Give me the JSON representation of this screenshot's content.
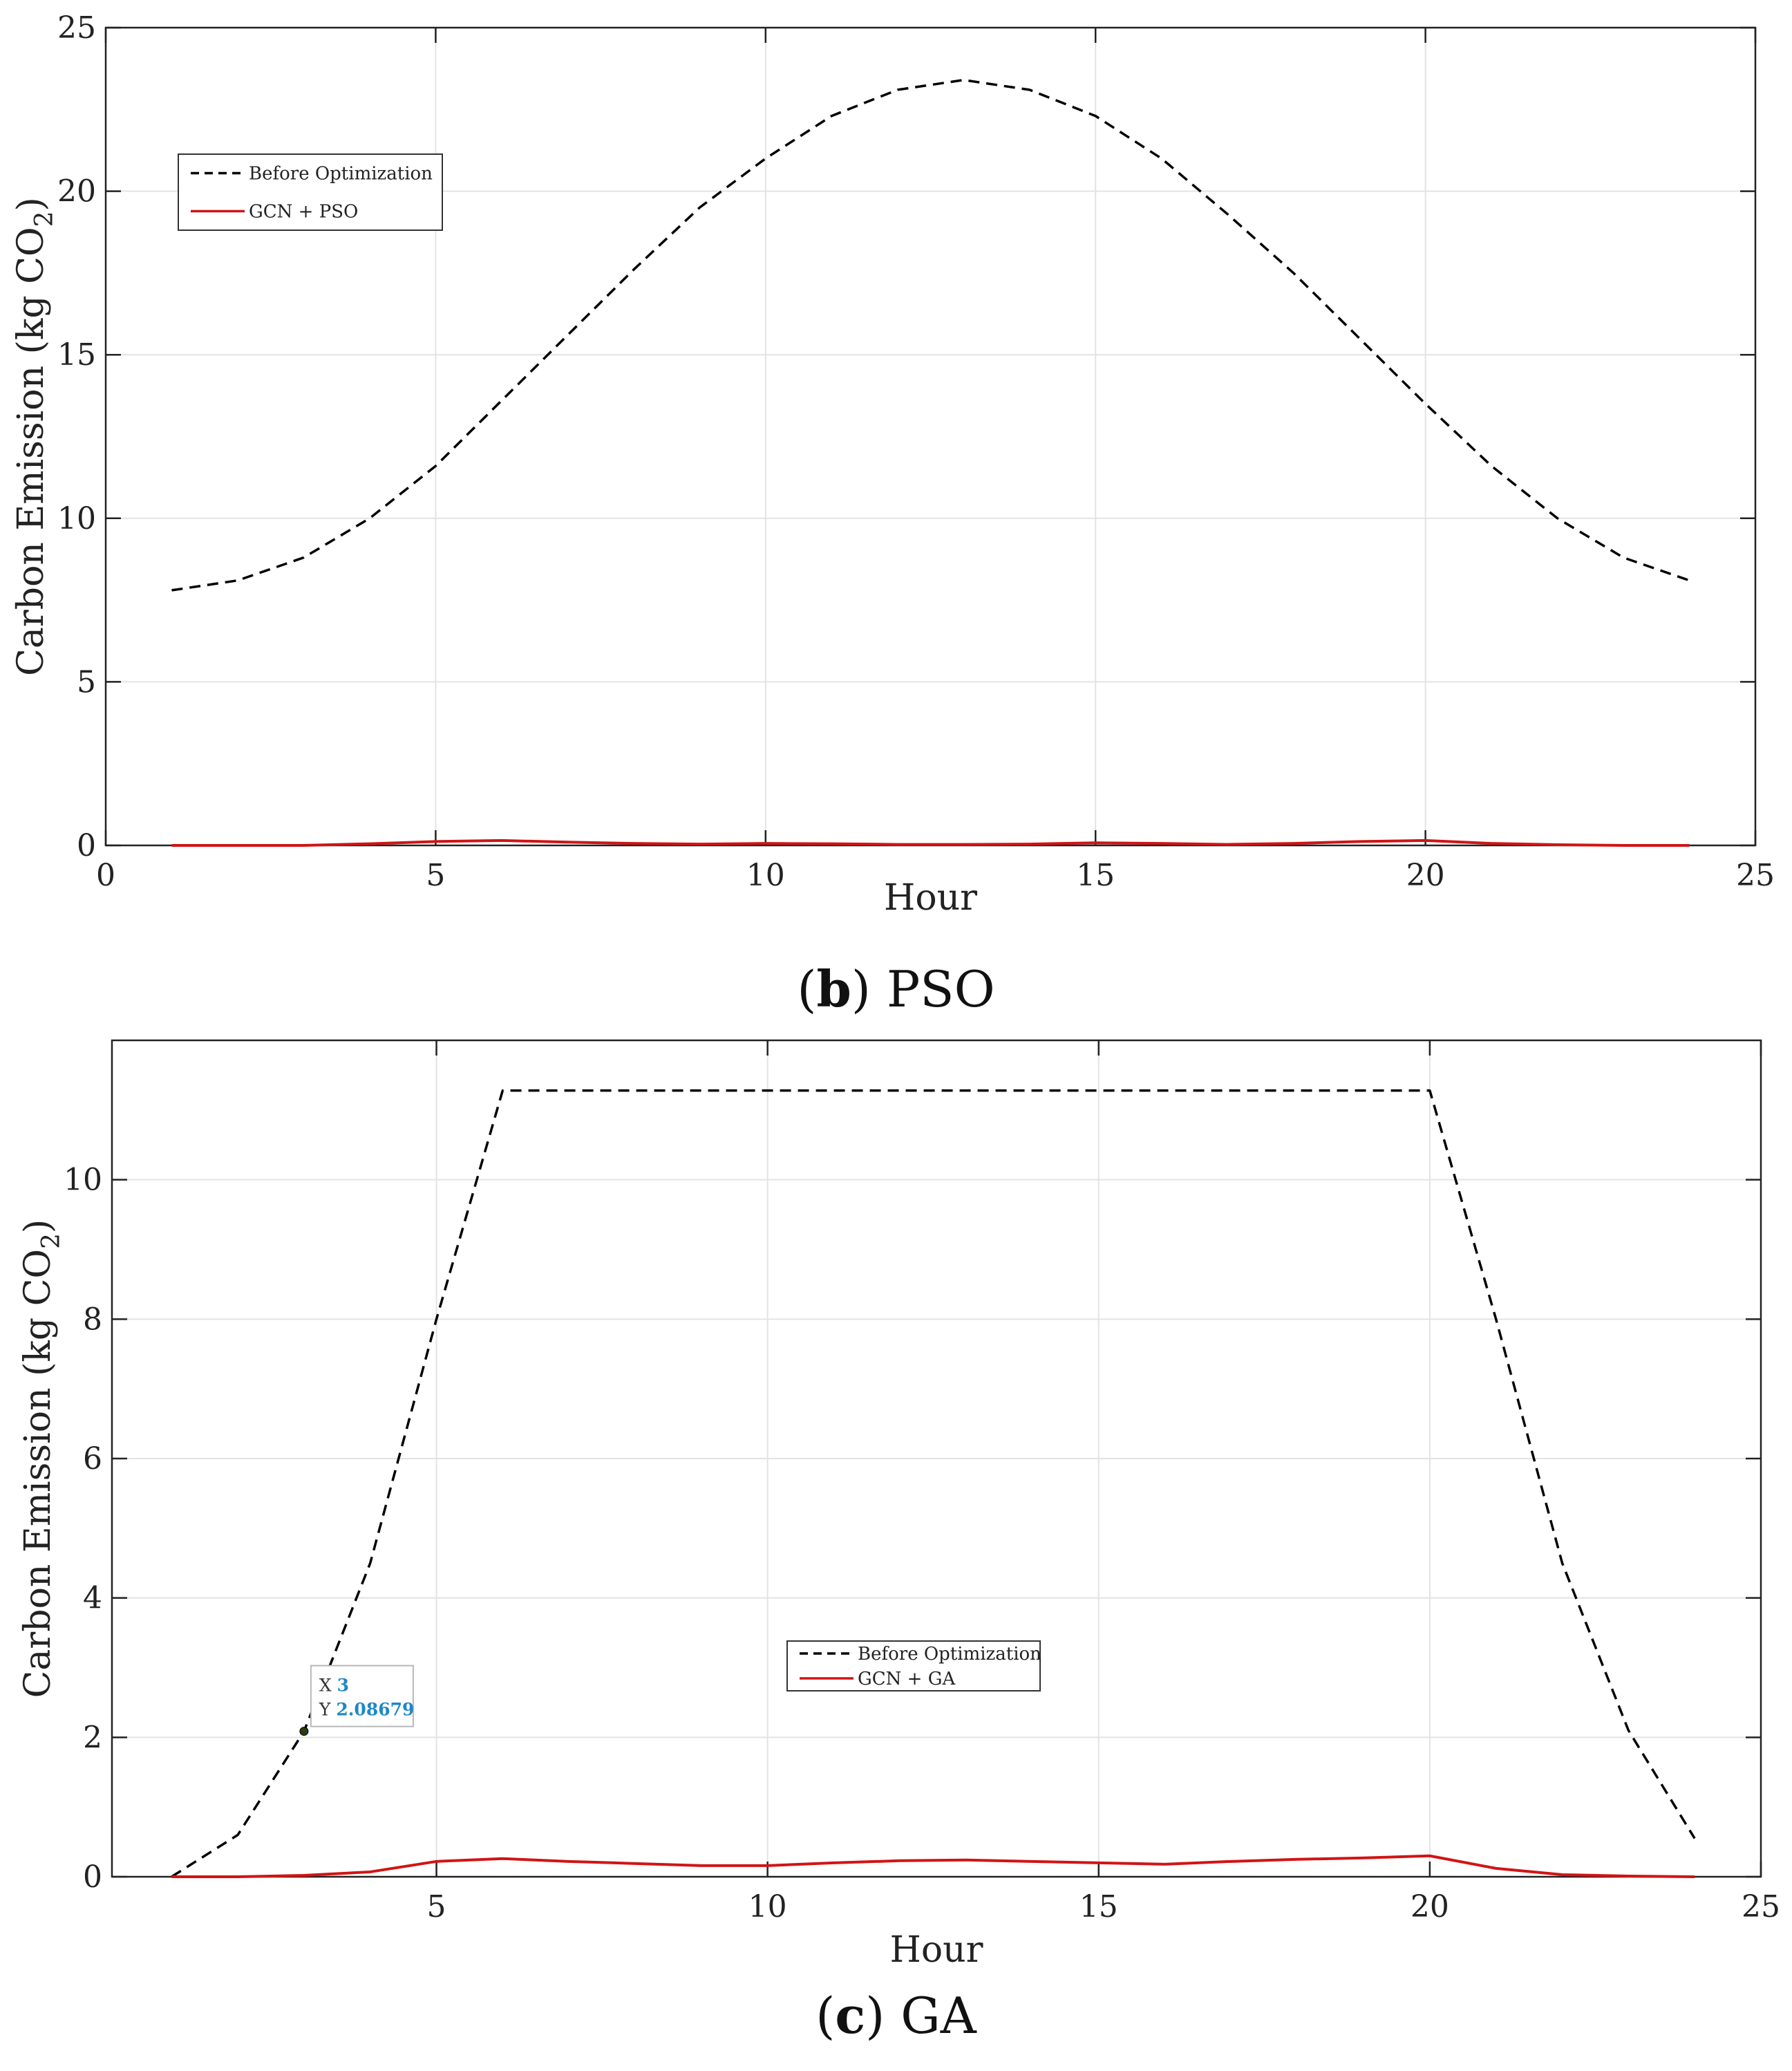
{
  "chart_data": [
    {
      "type": "line",
      "caption_letter": "b",
      "caption_text": "PSO",
      "xlabel": "Hour",
      "ylabel": "Carbon Emission (kg CO",
      "ylabel_sub": "2",
      "ylabel_close": ")",
      "xlim": [
        0,
        25
      ],
      "ylim": [
        0,
        25
      ],
      "xticks": [
        0,
        5,
        10,
        15,
        20,
        25
      ],
      "yticks": [
        0,
        5,
        10,
        15,
        20,
        25
      ],
      "grid": true,
      "legend_position": "upper-left",
      "x": [
        1,
        2,
        3,
        4,
        5,
        6,
        7,
        8,
        9,
        10,
        11,
        12,
        13,
        14,
        15,
        16,
        17,
        18,
        19,
        20,
        21,
        22,
        23,
        24
      ],
      "series": [
        {
          "name": "Before Optimization",
          "color": "#000000",
          "dash": true,
          "values": [
            7.8,
            8.1,
            8.8,
            10.0,
            11.6,
            13.6,
            15.6,
            17.6,
            19.5,
            21.0,
            22.3,
            23.1,
            23.4,
            23.1,
            22.3,
            21.0,
            19.3,
            17.5,
            15.5,
            13.5,
            11.6,
            10.0,
            8.8,
            8.1
          ]
        },
        {
          "name": "GCN + PSO",
          "color": "#d11414",
          "dash": false,
          "values": [
            0.0,
            0.0,
            0.0,
            0.05,
            0.12,
            0.15,
            0.1,
            0.06,
            0.04,
            0.06,
            0.05,
            0.03,
            0.03,
            0.04,
            0.08,
            0.06,
            0.03,
            0.06,
            0.12,
            0.15,
            0.06,
            0.02,
            0.0,
            0.0
          ]
        }
      ]
    },
    {
      "type": "line",
      "caption_letter": "c",
      "caption_text": "GA",
      "xlabel": "Hour",
      "ylabel": "Carbon Emission (kg CO",
      "ylabel_sub": "2",
      "ylabel_close": ")",
      "xlim": [
        0.1,
        25
      ],
      "ylim": [
        0,
        12
      ],
      "xticks": [
        5,
        10,
        15,
        20,
        25
      ],
      "yticks": [
        0,
        2,
        4,
        6,
        8,
        10
      ],
      "grid": true,
      "legend_position": "center",
      "x": [
        1,
        2,
        3,
        4,
        5,
        6,
        7,
        8,
        9,
        10,
        11,
        12,
        13,
        14,
        15,
        16,
        17,
        18,
        19,
        20,
        21,
        22,
        23,
        24
      ],
      "series": [
        {
          "name": "Before Optimization",
          "color": "#000000",
          "dash": true,
          "values": [
            0.0,
            0.6,
            2.08679,
            4.5,
            8.0,
            11.28,
            11.28,
            11.28,
            11.28,
            11.28,
            11.28,
            11.28,
            11.28,
            11.28,
            11.28,
            11.28,
            11.28,
            11.28,
            11.28,
            11.28,
            8.0,
            4.5,
            2.1,
            0.55
          ]
        },
        {
          "name": "GCN + GA",
          "color": "#d11414",
          "dash": false,
          "values": [
            0.0,
            0.0,
            0.02,
            0.07,
            0.22,
            0.26,
            0.22,
            0.19,
            0.16,
            0.16,
            0.2,
            0.23,
            0.24,
            0.22,
            0.2,
            0.18,
            0.22,
            0.25,
            0.27,
            0.3,
            0.12,
            0.03,
            0.01,
            0.0
          ]
        }
      ],
      "datatip": {
        "x_label": "X",
        "x_value": "3",
        "y_label": "Y",
        "y_value": "2.08679",
        "color": "#1e88c8"
      }
    }
  ]
}
